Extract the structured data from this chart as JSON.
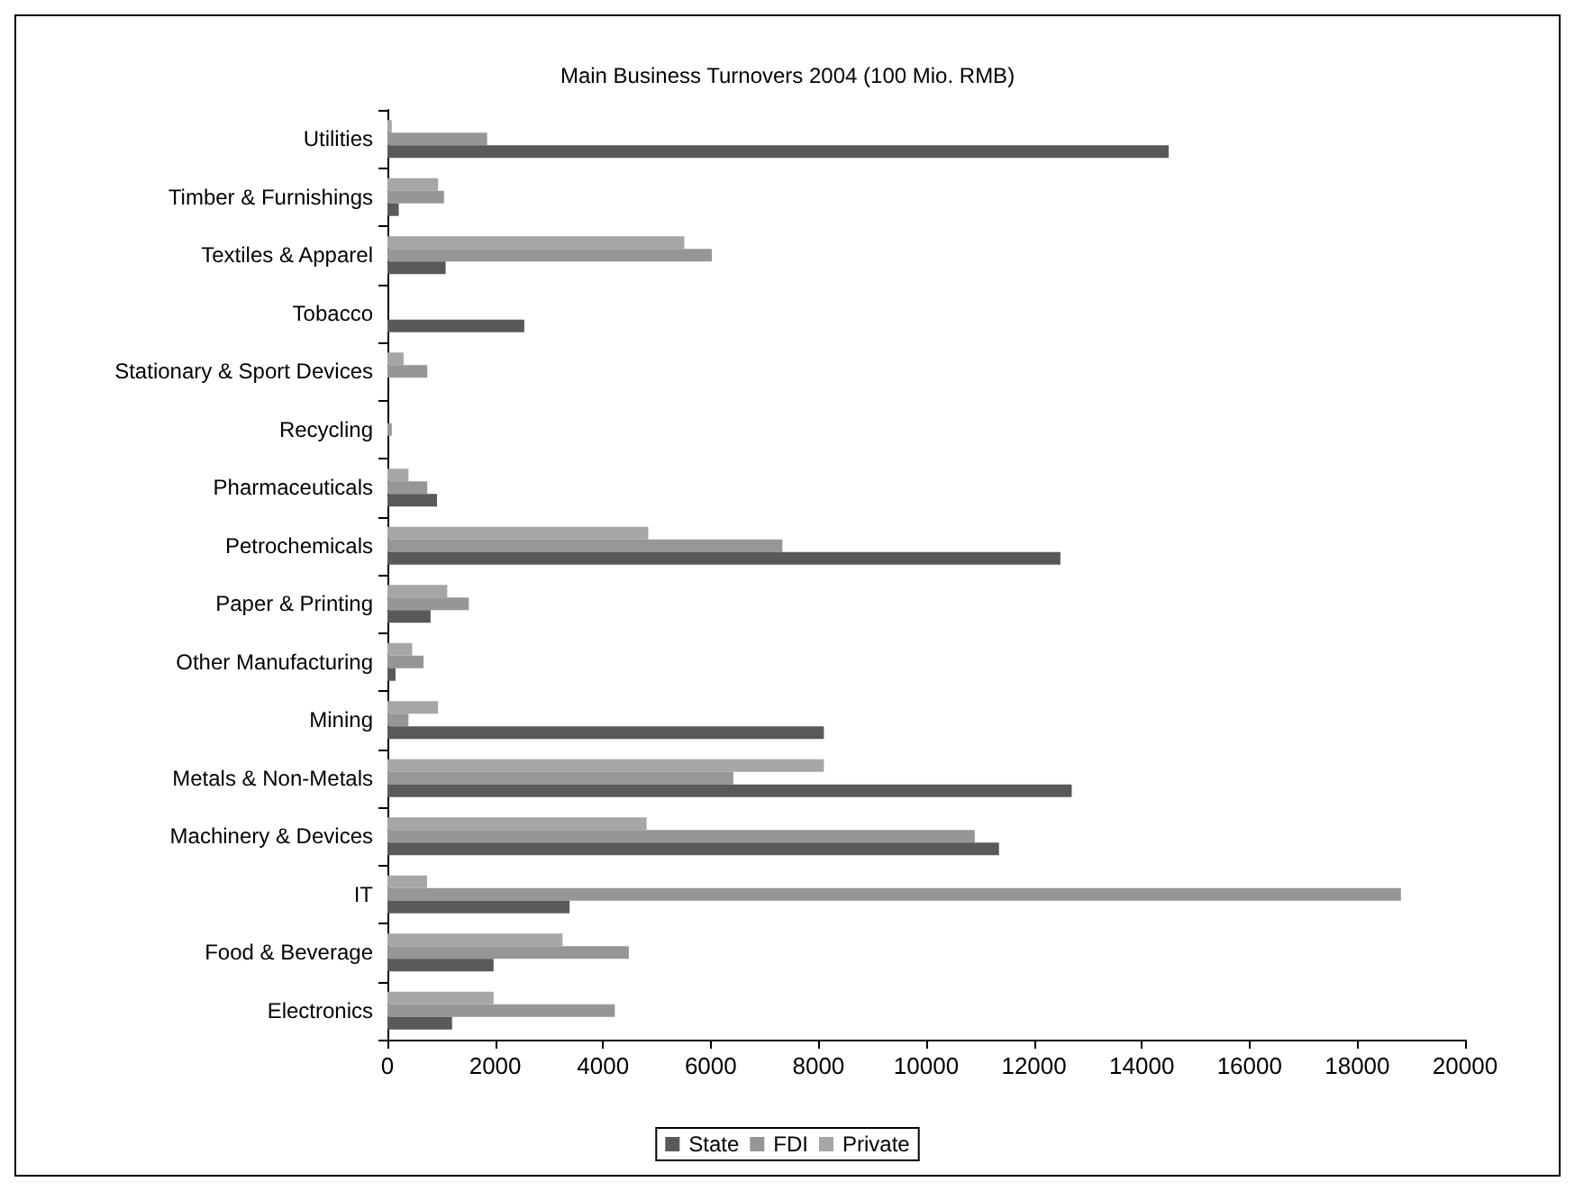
{
  "chart_data": {
    "type": "bar",
    "orientation": "horizontal",
    "title": "Main Business Turnovers 2004 (100 Mio. RMB)",
    "categories": [
      "Utilities",
      "Timber & Furnishings",
      "Textiles & Apparel",
      "Tobacco",
      "Stationary & Sport Devices",
      "Recycling",
      "Pharmaceuticals",
      "Petrochemicals",
      "Paper & Printing",
      "Other Manufacturing",
      "Mining",
      "Metals & Non-Metals",
      "Machinery & Devices",
      "IT",
      "Food & Beverage",
      "Electronics"
    ],
    "series": [
      {
        "name": "State",
        "color": "#595959",
        "values": [
          14500,
          210,
          1080,
          2540,
          0,
          0,
          920,
          12490,
          800,
          150,
          8100,
          12700,
          11350,
          3380,
          1970,
          1200
        ]
      },
      {
        "name": "FDI",
        "color": "#969696",
        "values": [
          1850,
          1050,
          6020,
          0,
          740,
          80,
          740,
          7330,
          1510,
          670,
          390,
          6420,
          10900,
          18810,
          4480,
          4220
        ]
      },
      {
        "name": "Private",
        "color": "#a6a6a6",
        "values": [
          80,
          940,
          5510,
          0,
          300,
          0,
          390,
          4840,
          1110,
          460,
          940,
          8100,
          4810,
          735,
          3250,
          1970
        ]
      }
    ],
    "xlim": [
      0,
      20000
    ],
    "xticks": [
      0,
      2000,
      4000,
      6000,
      8000,
      10000,
      12000,
      14000,
      16000,
      18000,
      20000
    ],
    "grid": false,
    "legend": "bottom"
  }
}
